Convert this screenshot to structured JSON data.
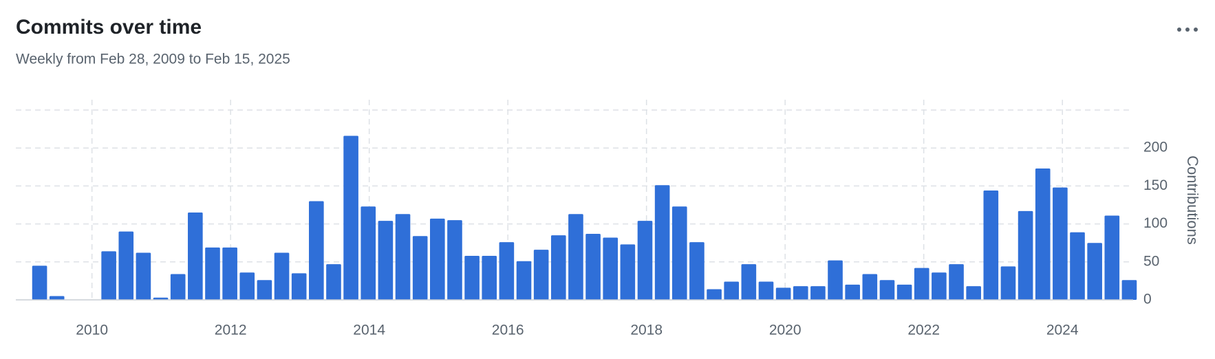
{
  "chart_data": {
    "type": "bar",
    "title": "Commits over time",
    "subtitle": "Weekly from Feb 28, 2009 to Feb 15, 2025",
    "y_label": "Contributions",
    "categories": [
      null,
      null,
      null,
      null,
      null,
      null,
      null,
      null,
      null,
      null,
      null,
      null,
      null,
      null,
      null,
      null,
      null,
      null,
      null,
      null,
      null,
      null,
      null,
      null,
      null,
      null,
      null,
      null,
      null,
      null,
      null,
      null,
      null,
      null,
      null,
      null,
      null,
      null,
      null,
      null,
      null,
      null,
      null,
      null,
      null,
      null,
      null,
      null,
      null,
      null,
      null,
      null,
      null,
      null,
      null,
      null,
      null,
      null,
      null,
      null,
      null,
      null,
      null,
      null
    ],
    "values": [
      45,
      5,
      0,
      0,
      64,
      90,
      62,
      3,
      34,
      115,
      69,
      69,
      36,
      26,
      62,
      35,
      130,
      47,
      216,
      123,
      104,
      113,
      84,
      107,
      105,
      58,
      58,
      76,
      51,
      66,
      85,
      113,
      87,
      82,
      73,
      104,
      151,
      123,
      76,
      14,
      24,
      47,
      24,
      16,
      18,
      18,
      52,
      20,
      34,
      26,
      20,
      42,
      36,
      47,
      18,
      144,
      44,
      117,
      173,
      148,
      89,
      75,
      111,
      26
    ],
    "color": "#2f6fd8",
    "ylim": [
      0,
      250
    ],
    "yticks": [
      0,
      50,
      100,
      150,
      200
    ],
    "xlim": [
      2009.12,
      2025.09
    ],
    "xticks": [
      2010,
      2012,
      2014,
      2016,
      2018,
      2020,
      2022,
      2024
    ],
    "grid": true
  }
}
